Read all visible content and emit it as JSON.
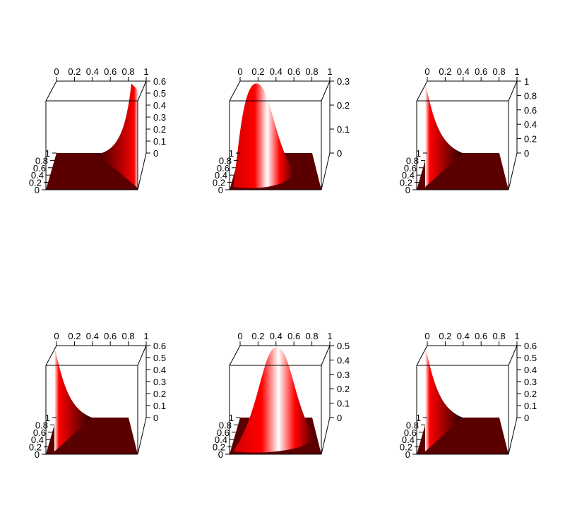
{
  "colors": {
    "surface": "#ff0000",
    "shadow": "#000000",
    "floor": "#5a0000",
    "axis": "#000000"
  },
  "chart_data": [
    {
      "type": "surface",
      "xlim": [
        0,
        1
      ],
      "ylim": [
        0,
        1
      ],
      "x_ticks": [
        "0",
        "0.2",
        "0.4",
        "0.6",
        "0.8",
        "1"
      ],
      "y_ticks": [
        "0",
        "0.2",
        "0.4",
        "0.6",
        "0.8",
        "1"
      ],
      "z_ticks": [
        "0",
        "0.1",
        "0.2",
        "0.3",
        "0.4",
        "0.5",
        "0.6"
      ],
      "zlim": [
        0,
        0.6
      ],
      "peak": {
        "x": 1.0,
        "y": 0.0,
        "z": 0.58
      },
      "shape": "corner-right"
    },
    {
      "type": "surface",
      "xlim": [
        0,
        1
      ],
      "ylim": [
        0,
        1
      ],
      "x_ticks": [
        "0",
        "0.2",
        "0.4",
        "0.6",
        "0.8",
        "1"
      ],
      "y_ticks": [
        "0",
        "0.2",
        "0.4",
        "0.6",
        "0.8",
        "1"
      ],
      "z_ticks": [
        "0",
        "0.1",
        "0.2",
        "0.3"
      ],
      "zlim": [
        0,
        0.3
      ],
      "peak": {
        "x": 0.2,
        "y": 0.3,
        "z": 0.29
      },
      "shape": "bump"
    },
    {
      "type": "surface",
      "xlim": [
        0,
        1
      ],
      "ylim": [
        0,
        1
      ],
      "x_ticks": [
        "0",
        "0.2",
        "0.4",
        "0.6",
        "0.8",
        "1"
      ],
      "y_ticks": [
        "0",
        "0.2",
        "0.4",
        "0.6",
        "0.8",
        "1"
      ],
      "z_ticks": [
        "0",
        "0.2",
        "0.4",
        "0.6",
        "0.8",
        "1"
      ],
      "zlim": [
        0,
        1
      ],
      "peak": {
        "x": 0.0,
        "y": 0.0,
        "z": 0.98
      },
      "shape": "corner-left"
    },
    {
      "type": "surface",
      "xlim": [
        0,
        1
      ],
      "ylim": [
        0,
        1
      ],
      "x_ticks": [
        "0",
        "0.2",
        "0.4",
        "0.6",
        "0.8",
        "1"
      ],
      "y_ticks": [
        "0",
        "0.2",
        "0.4",
        "0.6",
        "0.8",
        "1"
      ],
      "z_ticks": [
        "0",
        "0.1",
        "0.2",
        "0.3",
        "0.4",
        "0.5",
        "0.6"
      ],
      "zlim": [
        0,
        0.6
      ],
      "peak": {
        "x": 0.0,
        "y": 0.0,
        "z": 0.6
      },
      "shape": "corner-left"
    },
    {
      "type": "surface",
      "xlim": [
        0,
        1
      ],
      "ylim": [
        0,
        1
      ],
      "x_ticks": [
        "0",
        "0.2",
        "0.4",
        "0.6",
        "0.8",
        "1"
      ],
      "y_ticks": [
        "0",
        "0.2",
        "0.4",
        "0.6",
        "0.8",
        "1"
      ],
      "z_ticks": [
        "0",
        "0.1",
        "0.2",
        "0.3",
        "0.4",
        "0.5"
      ],
      "zlim": [
        0,
        0.5
      ],
      "peak": {
        "x": 0.45,
        "y": 0.5,
        "z": 0.49
      },
      "shape": "bump"
    },
    {
      "type": "surface",
      "xlim": [
        0,
        1
      ],
      "ylim": [
        0,
        1
      ],
      "x_ticks": [
        "0",
        "0.2",
        "0.4",
        "0.6",
        "0.8",
        "1"
      ],
      "y_ticks": [
        "0",
        "0.2",
        "0.4",
        "0.6",
        "0.8",
        "1"
      ],
      "z_ticks": [
        "0",
        "0.1",
        "0.2",
        "0.3",
        "0.4",
        "0.5",
        "0.6"
      ],
      "zlim": [
        0,
        0.6
      ],
      "peak": {
        "x": 0.0,
        "y": 0.0,
        "z": 0.6
      },
      "shape": "corner-left"
    }
  ]
}
